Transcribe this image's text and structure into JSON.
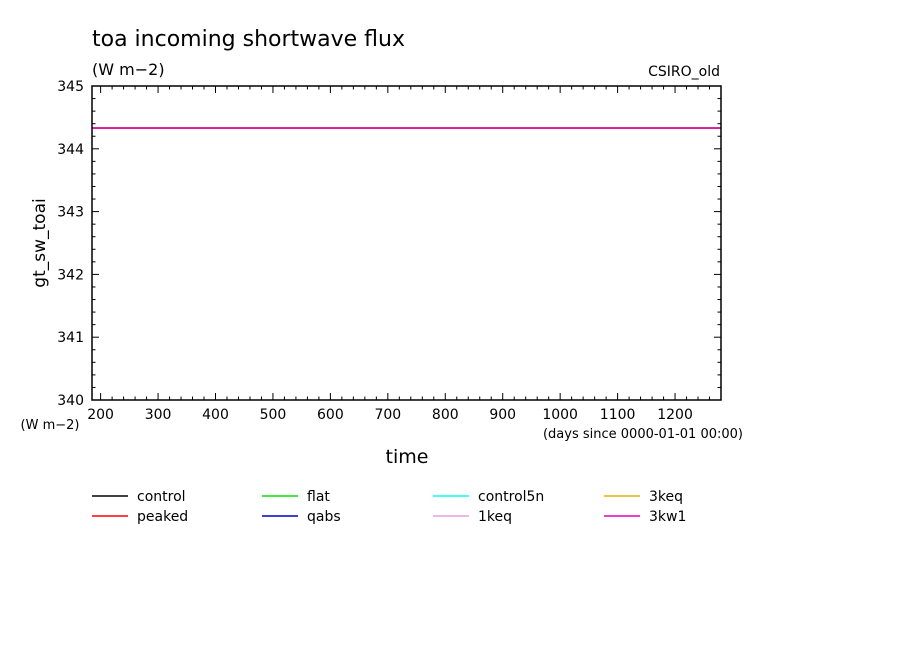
{
  "chart_data": {
    "type": "line",
    "title": "toa incoming shortwave flux",
    "subtitle": "(W m−2)",
    "label_right": "CSIRO_old",
    "xlabel": "time",
    "x_units": "(days since 0000-01-01 00:00)",
    "ylabel": "gt_sw_toai",
    "y_units": "(W m−2)",
    "xlim": [
      185,
      1280
    ],
    "ylim": [
      340,
      345
    ],
    "x_ticks": [
      200,
      300,
      400,
      500,
      600,
      700,
      800,
      900,
      1000,
      1100,
      1200
    ],
    "y_ticks": [
      340,
      341,
      342,
      343,
      344,
      345
    ],
    "grid": false,
    "legend_position": "bottom",
    "series": [
      {
        "name": "control",
        "color": "#000000",
        "x": [
          185,
          1280
        ],
        "y": [
          344.33,
          344.33
        ]
      },
      {
        "name": "peaked",
        "color": "#ff0000",
        "x": [
          185,
          1280
        ],
        "y": [
          344.33,
          344.33
        ]
      },
      {
        "name": "flat",
        "color": "#00e000",
        "x": [
          185,
          1280
        ],
        "y": [
          344.33,
          344.33
        ]
      },
      {
        "name": "qabs",
        "color": "#0000c8",
        "x": [
          185,
          1280
        ],
        "y": [
          344.33,
          344.33
        ]
      },
      {
        "name": "control5n",
        "color": "#00ffff",
        "x": [
          185,
          1280
        ],
        "y": [
          344.33,
          344.33
        ]
      },
      {
        "name": "1keq",
        "color": "#e8a0d8",
        "x": [
          185,
          1280
        ],
        "y": [
          344.33,
          344.33
        ]
      },
      {
        "name": "3keq",
        "color": "#e8b000",
        "x": [
          185,
          1280
        ],
        "y": [
          344.33,
          344.33
        ]
      },
      {
        "name": "3kw1",
        "color": "#e000b8",
        "x": [
          185,
          1280
        ],
        "y": [
          344.33,
          344.33
        ]
      }
    ]
  }
}
